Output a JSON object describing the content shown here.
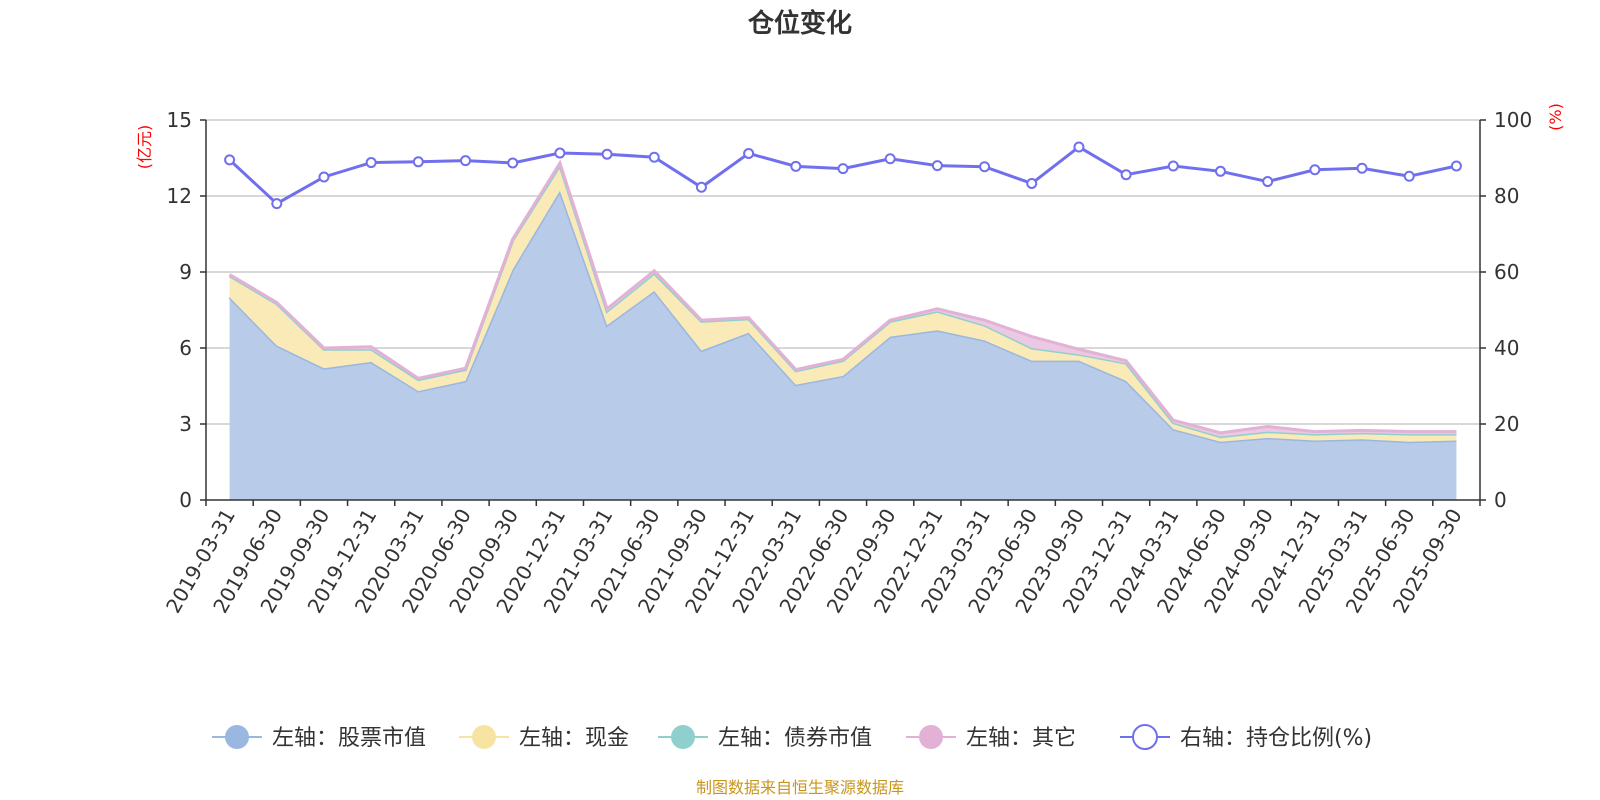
{
  "chart_data": {
    "type": "area",
    "title": "仓位变化",
    "left_unit": "(亿元)",
    "right_unit": "(%)",
    "categories": [
      "2019-03-31",
      "2019-06-30",
      "2019-09-30",
      "2019-12-31",
      "2020-03-31",
      "2020-06-30",
      "2020-09-30",
      "2020-12-31",
      "2021-03-31",
      "2021-06-30",
      "2021-09-30",
      "2021-12-31",
      "2022-03-31",
      "2022-06-30",
      "2022-09-30",
      "2022-12-31",
      "2023-03-31",
      "2023-06-30",
      "2023-09-30",
      "2023-12-31",
      "2024-03-31",
      "2024-06-30",
      "2024-09-30",
      "2024-12-31",
      "2025-03-31",
      "2025-06-30",
      "2025-09-30"
    ],
    "left_ylim": [
      0,
      15
    ],
    "left_ticks": [
      "0",
      "3",
      "6",
      "9",
      "12",
      "15"
    ],
    "right_ylim": [
      0,
      100
    ],
    "right_ticks": [
      "0",
      "20",
      "40",
      "60",
      "80",
      "100"
    ],
    "series": [
      {
        "name": "左轴：股票市值",
        "axis": "left",
        "stack": true,
        "color": "#9ab7e0",
        "fill": "#b8cbe9",
        "values": [
          8.0,
          6.1,
          5.2,
          5.45,
          4.3,
          4.7,
          9.1,
          12.2,
          6.9,
          8.25,
          5.9,
          6.6,
          4.55,
          4.9,
          6.45,
          6.7,
          6.3,
          5.5,
          5.5,
          4.7,
          2.8,
          2.3,
          2.45,
          2.35,
          2.4,
          2.3,
          2.35
        ]
      },
      {
        "name": "左轴：现金",
        "axis": "left",
        "stack": true,
        "color": "#f7e4a3",
        "fill": "#f9eab8",
        "values": [
          0.85,
          1.65,
          0.75,
          0.5,
          0.45,
          0.45,
          1.15,
          1.0,
          0.55,
          0.7,
          1.15,
          0.55,
          0.55,
          0.6,
          0.6,
          0.75,
          0.6,
          0.5,
          0.25,
          0.7,
          0.25,
          0.2,
          0.25,
          0.25,
          0.25,
          0.3,
          0.25
        ]
      },
      {
        "name": "左轴：债券市值",
        "axis": "left",
        "stack": true,
        "color": "#8fd0cf",
        "fill": "#b4e0df",
        "values": [
          0,
          0,
          0,
          0,
          0,
          0,
          0,
          0,
          0,
          0,
          0,
          0,
          0,
          0,
          0,
          0,
          0,
          0,
          0,
          0,
          0,
          0,
          0,
          0,
          0,
          0,
          0
        ]
      },
      {
        "name": "左轴：其它",
        "axis": "left",
        "stack": true,
        "color": "#e3b1d6",
        "fill": "#ecc9e2",
        "values": [
          0.05,
          0.05,
          0.05,
          0.1,
          0.05,
          0.05,
          0.05,
          0.1,
          0.1,
          0.1,
          0.05,
          0.05,
          0.05,
          0.05,
          0.05,
          0.1,
          0.2,
          0.45,
          0.2,
          0.1,
          0.1,
          0.15,
          0.2,
          0.1,
          0.1,
          0.1,
          0.1
        ]
      },
      {
        "name": "右轴：持仓比例(%)",
        "axis": "right",
        "color": "#7070ee",
        "values": [
          89.5,
          78,
          85,
          88.8,
          89,
          89.3,
          88.7,
          91.3,
          91,
          90.2,
          82.3,
          91.2,
          87.8,
          87.2,
          89.8,
          88,
          87.7,
          83.3,
          92.9,
          85.6,
          87.9,
          86.5,
          83.8,
          86.9,
          87.3,
          85.2,
          87.9
        ]
      }
    ]
  },
  "source_note": "制图数据来自恒生聚源数据库"
}
